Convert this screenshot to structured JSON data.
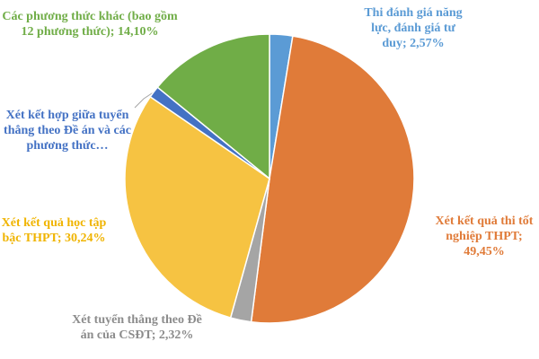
{
  "chart_data": {
    "type": "pie",
    "categories": [
      "Thi đánh giá năng lực, đánh giá tư duy;",
      "Xét kết quả thi tốt nghiệp THPT;",
      "Xét tuyển thẳng theo Đề án của CSĐT;",
      "Xét kết quả học tập bậc THPT;",
      "Xét kết hợp giữa tuyển thẳng theo Đề án và các phương thức…",
      "Các phương thức khác (bao gồm 12 phương thức);"
    ],
    "values": [
      2.57,
      49.45,
      2.32,
      30.24,
      1.32,
      14.1
    ],
    "value_labels": [
      "2,57%",
      "49,45%",
      "2,32%",
      "30,24%",
      null,
      "14,10%"
    ],
    "colors": [
      "#5b9bd5",
      "#e07b39",
      "#a5a5a5",
      "#f6c342",
      "#4472c4",
      "#70ad47"
    ],
    "label_colors": [
      "#5b9bd5",
      "#e07b39",
      "#8c8c8c",
      "#f0b400",
      "#4472c4",
      "#70ad47"
    ]
  }
}
